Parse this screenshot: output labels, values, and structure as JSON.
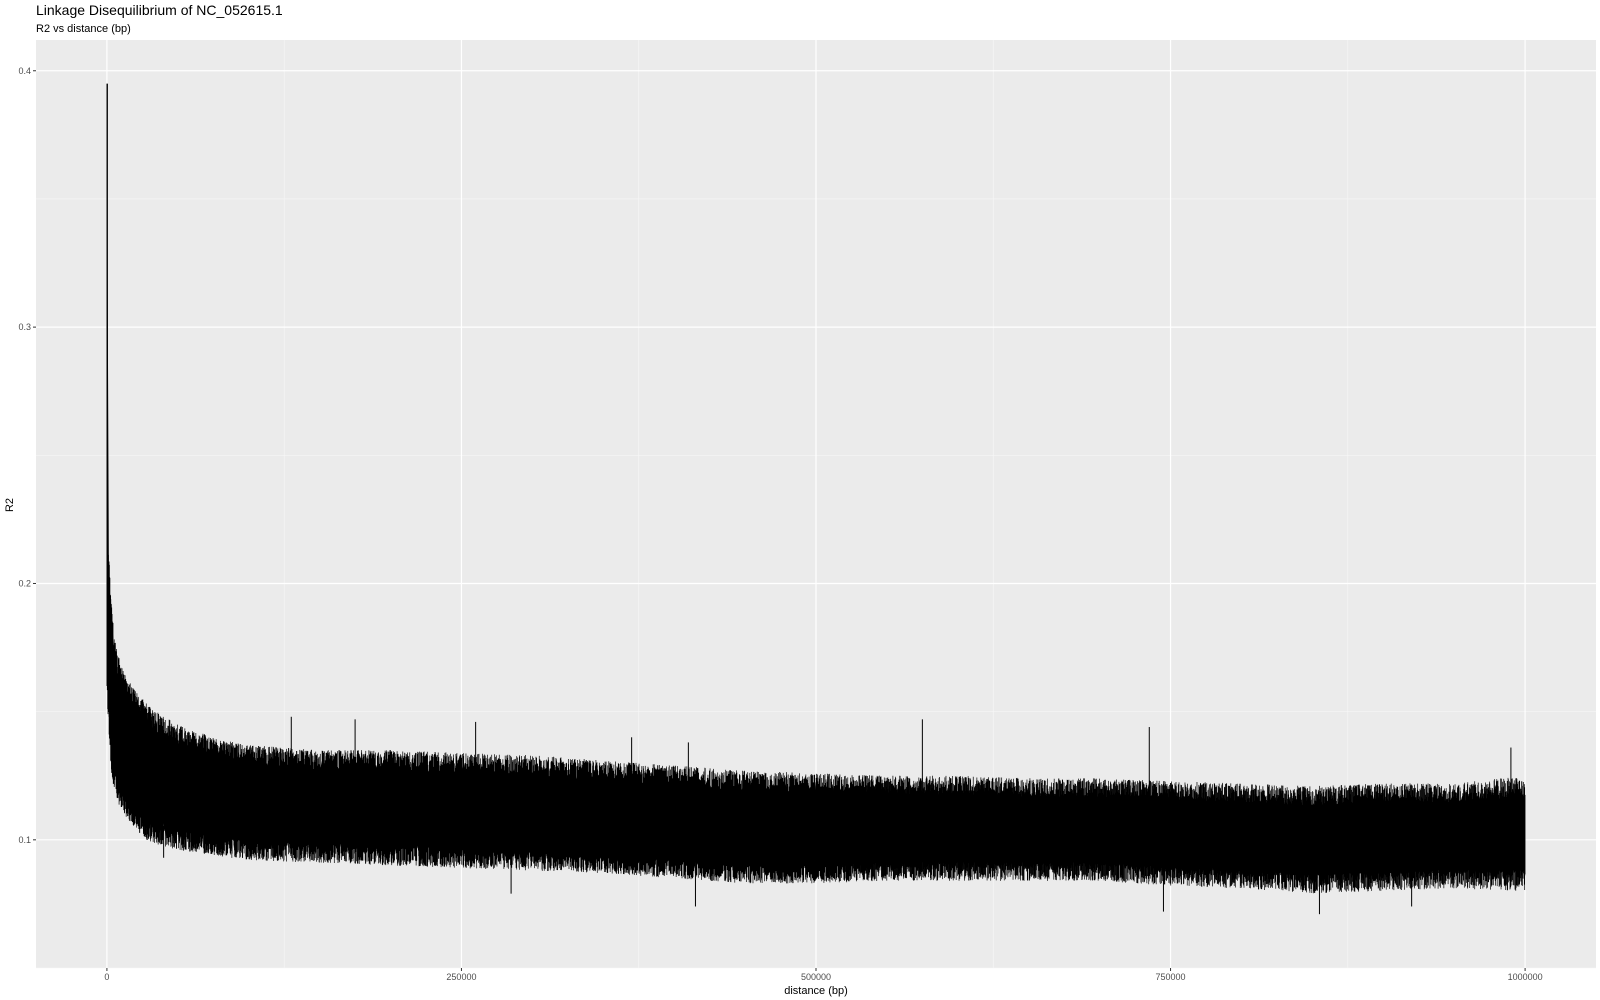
{
  "chart_data": {
    "type": "line",
    "title": "Linkage Disequilibrium of NC_052615.1",
    "subtitle": "R2 vs distance (bp)",
    "xlabel": "distance (bp)",
    "ylabel": "R2",
    "xlim": [
      -50000,
      1050000
    ],
    "ylim": [
      0.05,
      0.412
    ],
    "x_ticks": [
      {
        "value": 0,
        "label": "0"
      },
      {
        "value": 250000,
        "label": "250000"
      },
      {
        "value": 500000,
        "label": "500000"
      },
      {
        "value": 750000,
        "label": "750000"
      },
      {
        "value": 1000000,
        "label": "1000000"
      }
    ],
    "y_ticks": [
      {
        "value": 0.1,
        "label": "0.1"
      },
      {
        "value": 0.2,
        "label": "0.2"
      },
      {
        "value": 0.3,
        "label": "0.3"
      },
      {
        "value": 0.4,
        "label": "0.4"
      }
    ],
    "grid": true,
    "legend": "none",
    "line_color": "#000000",
    "panel_color": "#ebebeb",
    "series": [
      {
        "x": [
          0,
          500,
          1000,
          2000,
          3000,
          5000,
          8000,
          12000,
          20000,
          30000,
          50000,
          75000,
          100000,
          150000,
          200000,
          250000,
          300000,
          350000,
          400000,
          450000,
          500000,
          550000,
          600000,
          650000,
          700000,
          750000,
          800000,
          850000,
          900000,
          950000,
          1000000
        ],
        "upper": [
          0.395,
          0.23,
          0.215,
          0.205,
          0.195,
          0.18,
          0.172,
          0.165,
          0.158,
          0.152,
          0.145,
          0.14,
          0.137,
          0.135,
          0.135,
          0.134,
          0.133,
          0.131,
          0.129,
          0.127,
          0.126,
          0.125,
          0.125,
          0.124,
          0.124,
          0.123,
          0.122,
          0.121,
          0.122,
          0.122,
          0.125
        ],
        "lower": [
          0.16,
          0.15,
          0.145,
          0.135,
          0.125,
          0.12,
          0.114,
          0.11,
          0.104,
          0.099,
          0.096,
          0.094,
          0.092,
          0.091,
          0.09,
          0.089,
          0.088,
          0.087,
          0.085,
          0.083,
          0.083,
          0.084,
          0.084,
          0.084,
          0.084,
          0.082,
          0.081,
          0.079,
          0.08,
          0.081,
          0.08
        ],
        "peaks": [
          {
            "x": 130000,
            "y": 0.148
          },
          {
            "x": 175000,
            "y": 0.147
          },
          {
            "x": 260000,
            "y": 0.146
          },
          {
            "x": 575000,
            "y": 0.147
          },
          {
            "x": 735000,
            "y": 0.144
          },
          {
            "x": 370000,
            "y": 0.14
          },
          {
            "x": 410000,
            "y": 0.138
          },
          {
            "x": 990000,
            "y": 0.136
          }
        ],
        "dips": [
          {
            "x": 40000,
            "y": 0.093
          },
          {
            "x": 285000,
            "y": 0.079
          },
          {
            "x": 415000,
            "y": 0.074
          },
          {
            "x": 745000,
            "y": 0.072
          },
          {
            "x": 855000,
            "y": 0.071
          },
          {
            "x": 920000,
            "y": 0.074
          }
        ]
      }
    ]
  }
}
